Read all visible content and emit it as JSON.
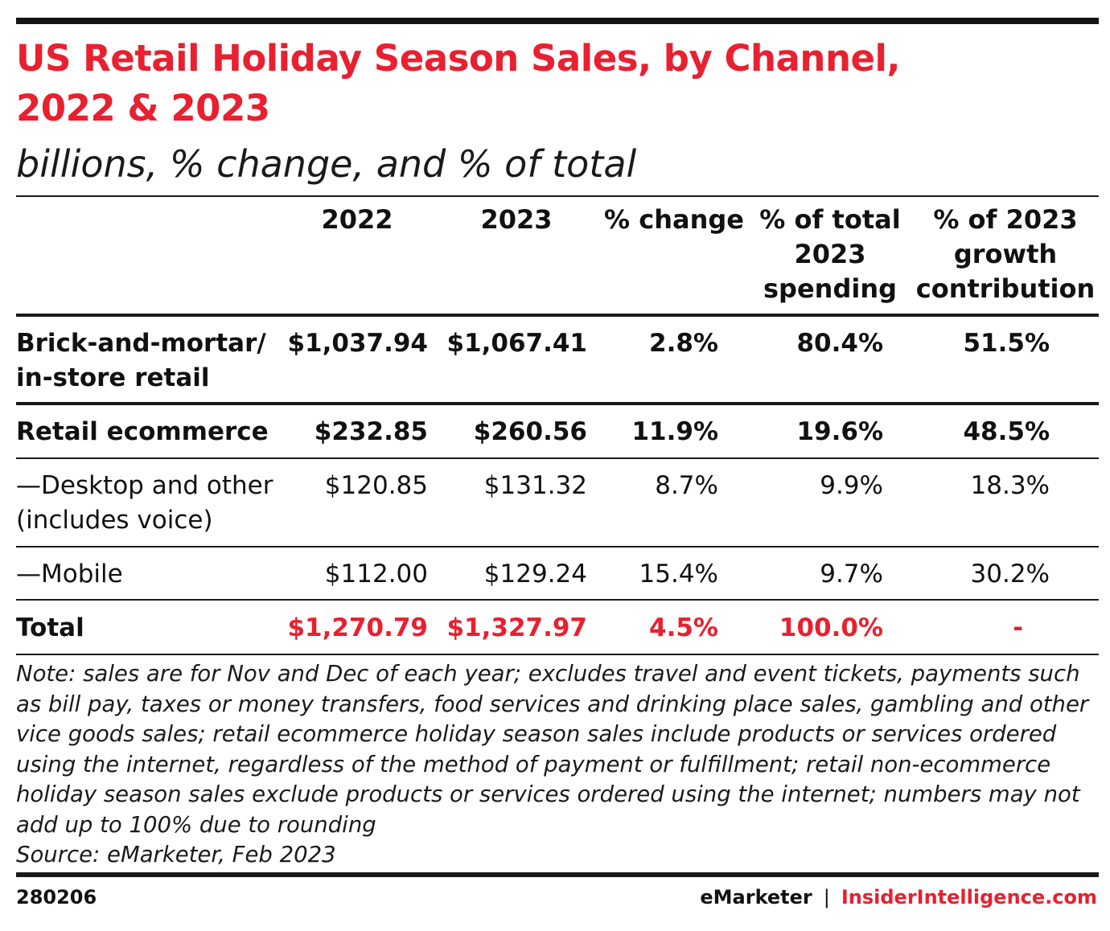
{
  "chart_data": {
    "type": "table",
    "title_lines": [
      "US Retail Holiday Season Sales, by Channel,",
      "2022 & 2023"
    ],
    "subtitle": "billions, % change, and % of total",
    "columns": [
      {
        "lines": [
          "2022"
        ]
      },
      {
        "lines": [
          "2023"
        ]
      },
      {
        "lines": [
          "% change"
        ]
      },
      {
        "lines": [
          "% of total",
          "2023",
          "spending"
        ]
      },
      {
        "lines": [
          "% of 2023",
          "growth",
          "contribution"
        ]
      }
    ],
    "rows": [
      {
        "label_lines": [
          "Brick-and-mortar/",
          "in-store retail"
        ],
        "style": "bold",
        "values": [
          "$1,037.94",
          "$1,067.41",
          "2.8%",
          "80.4%",
          "51.5%"
        ]
      },
      {
        "label_lines": [
          "Retail ecommerce"
        ],
        "style": "bold",
        "values": [
          "$232.85",
          "$260.56",
          "11.9%",
          "19.6%",
          "48.5%"
        ]
      },
      {
        "label_lines": [
          "—Desktop and other",
          "(includes voice)"
        ],
        "style": "normal",
        "values": [
          "$120.85",
          "$131.32",
          "8.7%",
          "9.9%",
          "18.3%"
        ]
      },
      {
        "label_lines": [
          "—Mobile"
        ],
        "style": "normal",
        "values": [
          "$112.00",
          "$129.24",
          "15.4%",
          "9.7%",
          "30.2%"
        ]
      },
      {
        "label_lines": [
          "Total"
        ],
        "style": "total",
        "values": [
          "$1,270.79",
          "$1,327.97",
          "4.5%",
          "100.0%",
          "-"
        ]
      }
    ]
  },
  "note": "Note: sales are for Nov and Dec of each year; excludes travel and event tickets, payments such as bill pay, taxes or money transfers, food services and drinking place sales, gambling and other vice goods sales; retail ecommerce holiday season sales include products or services ordered using the internet, regardless of the method of payment or fulfillment; retail non-ecommerce holiday season sales exclude products or services ordered using the internet; numbers may not add up to 100% due to rounding",
  "source": "Source: eMarketer, Feb 2023",
  "footer": {
    "code": "280206",
    "brand": "eMarketer",
    "separator": "|",
    "site": "InsiderIntelligence.com"
  },
  "colors": {
    "accent": "#e8202f",
    "text": "#111111",
    "rule": "#1a1a1a"
  }
}
